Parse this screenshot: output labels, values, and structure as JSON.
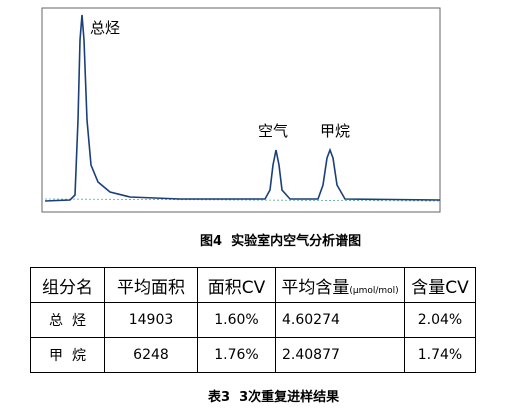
{
  "figure": {
    "peaks": [
      "总烃",
      "空气",
      "甲烷"
    ],
    "caption": "图4  实验室内空气分析谱图"
  },
  "table": {
    "header": [
      "组分名",
      "平均面积",
      "面积CV",
      "平均含量",
      "含量CV"
    ],
    "header_unit": "(μmol/mol)",
    "rows": [
      [
        "总  烃",
        "14903",
        "1.60%",
        "4.60274",
        "2.04%"
      ],
      [
        "甲  烷",
        "6248",
        "1.76%",
        "2.40877",
        "1.74%"
      ]
    ],
    "caption": "表3  3次重复进样结果"
  }
}
